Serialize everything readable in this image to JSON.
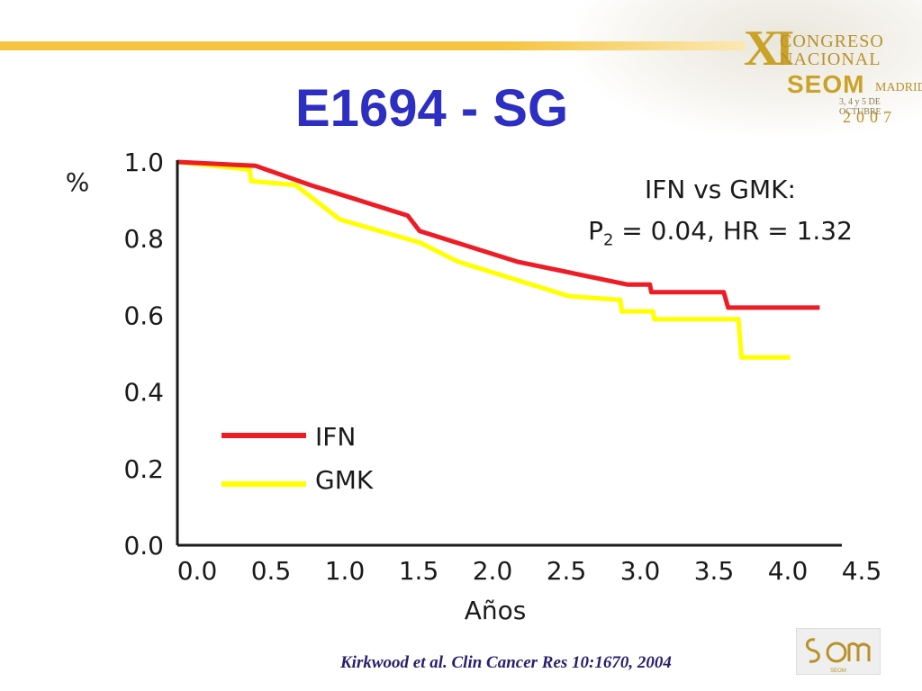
{
  "slide": {
    "title": "E1694 - SG",
    "stat_line1": "IFN vs GMK:",
    "stat_line2_prefix": "P",
    "stat_line2_sub": "2",
    "stat_line2_rest": " = 0.04, HR = 1.32",
    "citation": "Kirkwood et al. Clin Cancer Res 10:1670, 2004",
    "congress_logo": {
      "roman": "XI",
      "line1": "CONGRESO",
      "line2": "NACIONAL",
      "brand": "SEOM",
      "city": "MADRID",
      "dates": "3, 4 y 5 DE OCTUBRE",
      "year": "2007"
    },
    "society_logo_text": "SEOM"
  },
  "colors": {
    "title": "#2d2ec2",
    "ifn": "#ee1c24",
    "gmk": "#ffff00",
    "axis": "#1a1a1a",
    "accent_band": "#f5c542"
  },
  "chart_data": {
    "type": "line",
    "title": "E1694 - SG",
    "xlabel": "Años",
    "ylabel": "%",
    "xlim": [
      0,
      4.5
    ],
    "ylim": [
      0,
      1.0
    ],
    "x_ticks": [
      0.0,
      0.5,
      1.0,
      1.5,
      2.0,
      2.5,
      3.0,
      3.5,
      4.0,
      4.5
    ],
    "y_ticks": [
      0.0,
      0.2,
      0.4,
      0.6,
      0.8,
      1.0
    ],
    "x_tick_labels": [
      "0.0",
      "0.5",
      "1.0",
      "1.5",
      "2.0",
      "2.5",
      "3.0",
      "3.5",
      "4.0",
      "4.5"
    ],
    "y_tick_labels": [
      "0.0",
      "0.2",
      "0.4",
      "0.6",
      "0.8",
      "1.0"
    ],
    "legend_position": "lower-left",
    "grid": false,
    "series": [
      {
        "name": "IFN",
        "color": "#ee1c24",
        "points": [
          [
            0.0,
            1.0
          ],
          [
            0.53,
            0.99
          ],
          [
            0.9,
            0.94
          ],
          [
            1.56,
            0.86
          ],
          [
            1.64,
            0.82
          ],
          [
            2.3,
            0.74
          ],
          [
            3.05,
            0.68
          ],
          [
            3.2,
            0.68
          ],
          [
            3.21,
            0.66
          ],
          [
            3.7,
            0.66
          ],
          [
            3.73,
            0.62
          ],
          [
            4.35,
            0.62
          ]
        ]
      },
      {
        "name": "GMK",
        "color": "#ffff00",
        "points": [
          [
            0.0,
            1.0
          ],
          [
            0.49,
            0.98
          ],
          [
            0.5,
            0.95
          ],
          [
            0.8,
            0.94
          ],
          [
            1.1,
            0.85
          ],
          [
            1.64,
            0.79
          ],
          [
            1.9,
            0.74
          ],
          [
            2.65,
            0.65
          ],
          [
            3.0,
            0.64
          ],
          [
            3.01,
            0.61
          ],
          [
            3.22,
            0.61
          ],
          [
            3.23,
            0.59
          ],
          [
            3.8,
            0.59
          ],
          [
            3.82,
            0.49
          ],
          [
            4.15,
            0.49
          ]
        ]
      }
    ]
  }
}
